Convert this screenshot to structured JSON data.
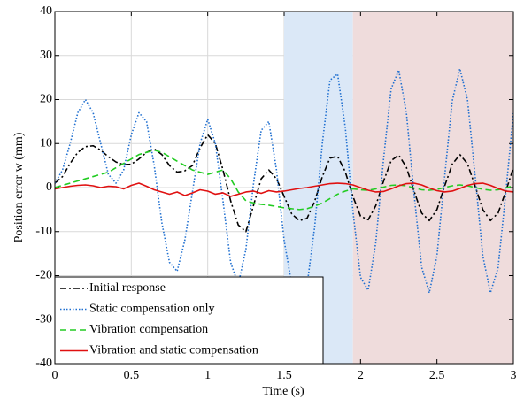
{
  "chart_data": {
    "type": "line",
    "xlabel": "Time (s)",
    "ylabel": "Position error w (mm)",
    "x": [
      0,
      0.05,
      0.1,
      0.15,
      0.2,
      0.25,
      0.3,
      0.35,
      0.4,
      0.45,
      0.5,
      0.55,
      0.6,
      0.65,
      0.7,
      0.75,
      0.8,
      0.85,
      0.9,
      0.95,
      1,
      1.05,
      1.1,
      1.15,
      1.2,
      1.25,
      1.3,
      1.35,
      1.4,
      1.45,
      1.5,
      1.55,
      1.6,
      1.65,
      1.7,
      1.75,
      1.8,
      1.85,
      1.9,
      1.95,
      2,
      2.05,
      2.1,
      2.15,
      2.2,
      2.25,
      2.3,
      2.35,
      2.4,
      2.45,
      2.5,
      2.55,
      2.6,
      2.65,
      2.7,
      2.75,
      2.8,
      2.85,
      2.9,
      2.95,
      3
    ],
    "series": [
      {
        "name": "Initial response",
        "color": "#000000",
        "style": "dashdot",
        "values": [
          1,
          2.5,
          5.5,
          8,
          9.3,
          9.5,
          8.5,
          7,
          5.8,
          5.2,
          5.3,
          6.5,
          8,
          8.8,
          7.5,
          5,
          3.5,
          3.8,
          5,
          9,
          12,
          10,
          4,
          -3,
          -8.5,
          -10,
          -4,
          2,
          4,
          2,
          -2,
          -6,
          -7.5,
          -7,
          -3.1,
          2.5,
          6.7,
          7.1,
          3.6,
          -2,
          -6.5,
          -7.3,
          -4.1,
          1.4,
          6.1,
          7.4,
          4.6,
          -0.8,
          -5.8,
          -7.5,
          -5,
          0.3,
          5.3,
          7.5,
          5.4,
          0.3,
          -5,
          -7.5,
          -5.8,
          -0.9,
          4.5
        ]
      },
      {
        "name": "Static compensation only",
        "color": "#1f6fd0",
        "style": "dotted",
        "values": [
          1,
          4,
          10,
          17,
          20,
          17,
          10,
          3,
          1,
          4,
          12,
          17,
          15,
          5,
          -8,
          -17,
          -19,
          -12,
          -1,
          10,
          15.5,
          10,
          -3,
          -17,
          -22,
          -14,
          1,
          13,
          15,
          4,
          -12,
          -22,
          -23.5,
          -22.2,
          -8.9,
          10.1,
          24.4,
          25.8,
          13.7,
          -5.3,
          -20.4,
          -23.3,
          -12.4,
          6.3,
          22.4,
          26.7,
          17,
          -1.4,
          -18.1,
          -23.9,
          -15.5,
          2.4,
          19.7,
          27,
          19.9,
          2.5,
          -15.5,
          -23.9,
          -18.2,
          -1.4,
          16.9
        ]
      },
      {
        "name": "Vibration compensation",
        "color": "#22cc22",
        "style": "dashed",
        "values": [
          0,
          0.5,
          1,
          1.5,
          2,
          2.5,
          3,
          3.5,
          4.5,
          5.5,
          6.5,
          7.5,
          8,
          8.5,
          8,
          7,
          6,
          5,
          4,
          3.5,
          3,
          3.5,
          4,
          2,
          -1,
          -3,
          -3.5,
          -3.8,
          -4,
          -4.3,
          -4.6,
          -4.8,
          -5,
          -4.8,
          -4.2,
          -3.5,
          -2.5,
          -1.5,
          -0.8,
          -0.3,
          -0.5,
          -0.6,
          -0.3,
          0.1,
          0.5,
          0.6,
          0.4,
          -0.1,
          -0.5,
          -0.6,
          -0.4,
          0,
          0.4,
          0.6,
          0.4,
          0,
          -0.4,
          -0.6,
          -0.5,
          -0.1,
          0.4
        ]
      },
      {
        "name": "Vibration and static compensation",
        "color": "#e01010",
        "style": "solid",
        "values": [
          -0.3,
          0,
          0.3,
          0.5,
          0.6,
          0.4,
          0,
          0.3,
          0.2,
          -0.3,
          0.5,
          1,
          0.3,
          -0.5,
          -1,
          -1.5,
          -1,
          -1.8,
          -1.2,
          -0.5,
          -0.8,
          -1.5,
          -1.2,
          -2,
          -1.5,
          -1,
          -0.8,
          -1.3,
          -0.7,
          -1,
          -0.8,
          -0.5,
          -0.2,
          0,
          0.3,
          0.6,
          0.9,
          1,
          0.9,
          0.6,
          0,
          -0.6,
          -1,
          -0.9,
          -0.3,
          0.4,
          0.9,
          1,
          0.6,
          -0.1,
          -0.7,
          -1,
          -0.8,
          -0.2,
          0.5,
          0.9,
          1,
          0.5,
          -0.2,
          -0.8,
          -1
        ]
      }
    ],
    "regions": [
      {
        "xlim": [
          1.5,
          1.95
        ],
        "color": "#dbe8f7"
      },
      {
        "xlim": [
          1.95,
          3
        ],
        "color": "#efdcdc"
      }
    ],
    "xlim": [
      0,
      3
    ],
    "xticks": [
      0,
      0.5,
      1,
      1.5,
      2,
      2.5,
      3
    ],
    "ylim": [
      -40,
      40
    ],
    "yticks": [
      -40,
      -30,
      -20,
      -10,
      0,
      10,
      20,
      30,
      40
    ],
    "grid": true,
    "legend": "lower left"
  }
}
